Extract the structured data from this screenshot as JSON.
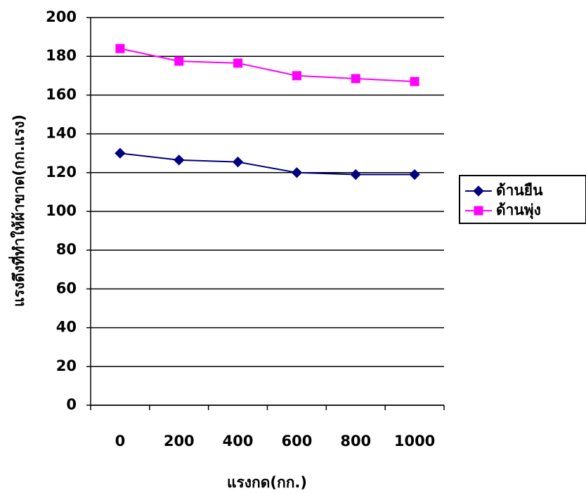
{
  "chart_data": {
    "type": "line",
    "x_label": "แรงกด(กก.)",
    "y_label": "แรงดึงที่ทำให้ผ้าขาด(กก.แรง)",
    "categories": [
      "0",
      "200",
      "400",
      "600",
      "800",
      "1000"
    ],
    "series": [
      {
        "name": "ด้านยืน",
        "color": "#000080",
        "marker": "diamond",
        "values": [
          130,
          126.5,
          125.5,
          120,
          119,
          119
        ]
      },
      {
        "name": "ด้านพุ่ง",
        "color": "#ff00ff",
        "marker": "square",
        "values": [
          184,
          177.5,
          176.5,
          170,
          168.5,
          167
        ]
      }
    ],
    "ylim": [
      0,
      200
    ],
    "yticks": [
      0,
      20,
      40,
      60,
      80,
      100,
      120,
      140,
      160,
      180,
      200
    ],
    "grid": true,
    "legend": "right"
  }
}
